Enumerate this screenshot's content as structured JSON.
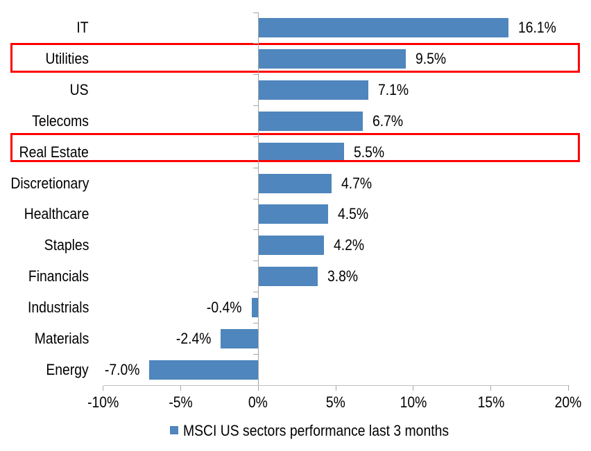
{
  "colors": {
    "bar": "#4F86BD",
    "highlight_border": "#FE0000",
    "axis_line": "#A6A6A6",
    "baseline": "#BFBFBF",
    "text": "#000000"
  },
  "chart_data": {
    "type": "bar",
    "orientation": "horizontal",
    "title": "",
    "xlabel": "",
    "ylabel": "",
    "categories": [
      "IT",
      "Utilities",
      "US",
      "Telecoms",
      "Real Estate",
      "Discretionary",
      "Healthcare",
      "Staples",
      "Financials",
      "Industrials",
      "Materials",
      "Energy"
    ],
    "values": [
      16.1,
      9.5,
      7.1,
      6.7,
      5.5,
      4.7,
      4.5,
      4.2,
      3.8,
      -0.4,
      -2.4,
      -7.0
    ],
    "value_labels": [
      "16.1%",
      "9.5%",
      "7.1%",
      "6.7%",
      "5.5%",
      "4.7%",
      "4.5%",
      "4.2%",
      "3.8%",
      "-0.4%",
      "-2.4%",
      "-7.0%"
    ],
    "highlighted_categories": [
      "Utilities",
      "Real Estate"
    ],
    "x_axis": {
      "min": -10,
      "max": 20,
      "tick_values": [
        -10,
        -5,
        0,
        5,
        10,
        15,
        20
      ],
      "tick_labels": [
        "-10%",
        "-5%",
        "0%",
        "5%",
        "10%",
        "15%",
        "20%"
      ]
    },
    "grid": false,
    "legend": {
      "position": "bottom",
      "label": "MSCI US sectors performance last 3 months",
      "marker": "square-icon"
    }
  }
}
